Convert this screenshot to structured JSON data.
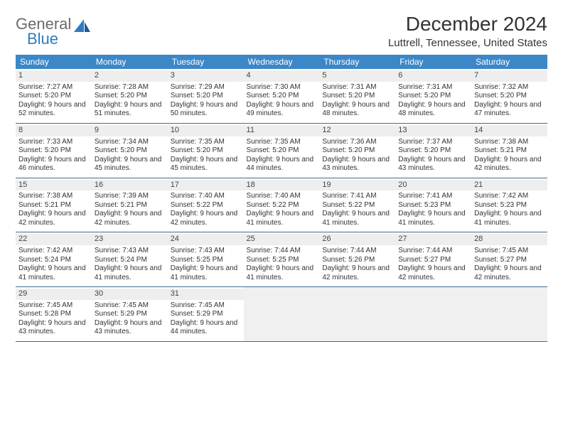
{
  "logo": {
    "top": "General",
    "bottom": "Blue"
  },
  "header": {
    "title": "December 2024",
    "location": "Luttrell, Tennessee, United States"
  },
  "colors": {
    "header_bg": "#3b87c8",
    "header_text": "#ffffff",
    "row_divider": "#3b6a93",
    "daynum_bg": "#eeeeee",
    "empty_bg": "#f0f0f0",
    "logo_blue": "#2f7bbf",
    "logo_grey": "#6b6b6b"
  },
  "weekdays": [
    "Sunday",
    "Monday",
    "Tuesday",
    "Wednesday",
    "Thursday",
    "Friday",
    "Saturday"
  ],
  "days": [
    {
      "n": 1,
      "sunrise": "7:27 AM",
      "sunset": "5:20 PM",
      "daylight": "9 hours and 52 minutes."
    },
    {
      "n": 2,
      "sunrise": "7:28 AM",
      "sunset": "5:20 PM",
      "daylight": "9 hours and 51 minutes."
    },
    {
      "n": 3,
      "sunrise": "7:29 AM",
      "sunset": "5:20 PM",
      "daylight": "9 hours and 50 minutes."
    },
    {
      "n": 4,
      "sunrise": "7:30 AM",
      "sunset": "5:20 PM",
      "daylight": "9 hours and 49 minutes."
    },
    {
      "n": 5,
      "sunrise": "7:31 AM",
      "sunset": "5:20 PM",
      "daylight": "9 hours and 48 minutes."
    },
    {
      "n": 6,
      "sunrise": "7:31 AM",
      "sunset": "5:20 PM",
      "daylight": "9 hours and 48 minutes."
    },
    {
      "n": 7,
      "sunrise": "7:32 AM",
      "sunset": "5:20 PM",
      "daylight": "9 hours and 47 minutes."
    },
    {
      "n": 8,
      "sunrise": "7:33 AM",
      "sunset": "5:20 PM",
      "daylight": "9 hours and 46 minutes."
    },
    {
      "n": 9,
      "sunrise": "7:34 AM",
      "sunset": "5:20 PM",
      "daylight": "9 hours and 45 minutes."
    },
    {
      "n": 10,
      "sunrise": "7:35 AM",
      "sunset": "5:20 PM",
      "daylight": "9 hours and 45 minutes."
    },
    {
      "n": 11,
      "sunrise": "7:35 AM",
      "sunset": "5:20 PM",
      "daylight": "9 hours and 44 minutes."
    },
    {
      "n": 12,
      "sunrise": "7:36 AM",
      "sunset": "5:20 PM",
      "daylight": "9 hours and 43 minutes."
    },
    {
      "n": 13,
      "sunrise": "7:37 AM",
      "sunset": "5:20 PM",
      "daylight": "9 hours and 43 minutes."
    },
    {
      "n": 14,
      "sunrise": "7:38 AM",
      "sunset": "5:21 PM",
      "daylight": "9 hours and 42 minutes."
    },
    {
      "n": 15,
      "sunrise": "7:38 AM",
      "sunset": "5:21 PM",
      "daylight": "9 hours and 42 minutes."
    },
    {
      "n": 16,
      "sunrise": "7:39 AM",
      "sunset": "5:21 PM",
      "daylight": "9 hours and 42 minutes."
    },
    {
      "n": 17,
      "sunrise": "7:40 AM",
      "sunset": "5:22 PM",
      "daylight": "9 hours and 42 minutes."
    },
    {
      "n": 18,
      "sunrise": "7:40 AM",
      "sunset": "5:22 PM",
      "daylight": "9 hours and 41 minutes."
    },
    {
      "n": 19,
      "sunrise": "7:41 AM",
      "sunset": "5:22 PM",
      "daylight": "9 hours and 41 minutes."
    },
    {
      "n": 20,
      "sunrise": "7:41 AM",
      "sunset": "5:23 PM",
      "daylight": "9 hours and 41 minutes."
    },
    {
      "n": 21,
      "sunrise": "7:42 AM",
      "sunset": "5:23 PM",
      "daylight": "9 hours and 41 minutes."
    },
    {
      "n": 22,
      "sunrise": "7:42 AM",
      "sunset": "5:24 PM",
      "daylight": "9 hours and 41 minutes."
    },
    {
      "n": 23,
      "sunrise": "7:43 AM",
      "sunset": "5:24 PM",
      "daylight": "9 hours and 41 minutes."
    },
    {
      "n": 24,
      "sunrise": "7:43 AM",
      "sunset": "5:25 PM",
      "daylight": "9 hours and 41 minutes."
    },
    {
      "n": 25,
      "sunrise": "7:44 AM",
      "sunset": "5:25 PM",
      "daylight": "9 hours and 41 minutes."
    },
    {
      "n": 26,
      "sunrise": "7:44 AM",
      "sunset": "5:26 PM",
      "daylight": "9 hours and 42 minutes."
    },
    {
      "n": 27,
      "sunrise": "7:44 AM",
      "sunset": "5:27 PM",
      "daylight": "9 hours and 42 minutes."
    },
    {
      "n": 28,
      "sunrise": "7:45 AM",
      "sunset": "5:27 PM",
      "daylight": "9 hours and 42 minutes."
    },
    {
      "n": 29,
      "sunrise": "7:45 AM",
      "sunset": "5:28 PM",
      "daylight": "9 hours and 43 minutes."
    },
    {
      "n": 30,
      "sunrise": "7:45 AM",
      "sunset": "5:29 PM",
      "daylight": "9 hours and 43 minutes."
    },
    {
      "n": 31,
      "sunrise": "7:45 AM",
      "sunset": "5:29 PM",
      "daylight": "9 hours and 44 minutes."
    }
  ],
  "labels": {
    "sunrise": "Sunrise:",
    "sunset": "Sunset:",
    "daylight": "Daylight:"
  },
  "layout": {
    "first_weekday_index": 0,
    "trailing_empty": 4
  }
}
